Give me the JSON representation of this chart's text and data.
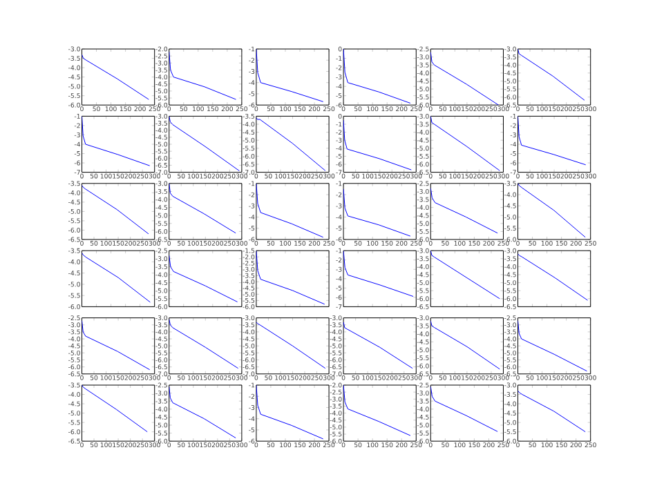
{
  "chart_data": [
    {
      "type": "line",
      "color": "#0000ff",
      "x": [
        0,
        5,
        15,
        122,
        230
      ],
      "values": [
        -3.3,
        -3.5,
        -3.6,
        -4.6,
        -5.7
      ],
      "xlim": [
        0,
        250
      ],
      "ylim": [
        -6,
        -3
      ],
      "xticks": [
        0,
        50,
        100,
        150,
        200,
        250
      ],
      "yticks": [
        {
          "value": -6,
          "label": "-6.0"
        },
        -5.5,
        {
          "value": -5,
          "label": "-5.0"
        },
        -4.5,
        {
          "value": -4,
          "label": "-4.0"
        },
        -3.5,
        {
          "value": -3,
          "label": "-3.0"
        }
      ]
    },
    {
      "type": "line",
      "color": "#0000ff",
      "x": [
        0,
        5,
        15,
        122,
        230
      ],
      "values": [
        -2.2,
        -3.5,
        -4.0,
        -4.7,
        -5.6
      ],
      "xlim": [
        0,
        250
      ],
      "ylim": [
        -6,
        -2
      ],
      "xticks": [
        0,
        50,
        100,
        150,
        200,
        250
      ],
      "yticks": [
        {
          "value": -6,
          "label": "-6.0"
        },
        -5.5,
        {
          "value": -5,
          "label": "-5.0"
        },
        -4.5,
        {
          "value": -4,
          "label": "-4.0"
        },
        -3.5,
        {
          "value": -3,
          "label": "-3.0"
        },
        -2.5,
        {
          "value": -2,
          "label": "-2.0"
        }
      ]
    },
    {
      "type": "line",
      "color": "#0000ff",
      "x": [
        0,
        5,
        15,
        122,
        230
      ],
      "values": [
        -1,
        -3.1,
        -4.0,
        -4.8,
        -5.7
      ],
      "xlim": [
        0,
        250
      ],
      "ylim": [
        -6,
        -1
      ],
      "xticks": [
        0,
        50,
        100,
        150,
        200,
        250
      ],
      "yticks": [
        -6,
        -5,
        -4,
        -3,
        -2,
        -1
      ]
    },
    {
      "type": "line",
      "color": "#0000ff",
      "x": [
        0,
        5,
        15,
        122,
        230
      ],
      "values": [
        0,
        -2.5,
        -3.6,
        -4.6,
        -5.8
      ],
      "xlim": [
        0,
        250
      ],
      "ylim": [
        -6,
        0
      ],
      "xticks": [
        0,
        50,
        100,
        150,
        200,
        250
      ],
      "yticks": [
        -6,
        -5,
        -4,
        -3,
        -2,
        -1,
        0
      ]
    },
    {
      "type": "line",
      "color": "#0000ff",
      "x": [
        0,
        5,
        15,
        148,
        280
      ],
      "values": [
        -2.7,
        -3.3,
        -3.5,
        -4.7,
        -6.0
      ],
      "xlim": [
        0,
        300
      ],
      "ylim": [
        -6,
        -2.5
      ],
      "xticks": [
        0,
        50,
        100,
        150,
        200,
        250,
        300
      ],
      "yticks": [
        {
          "value": -6,
          "label": "-6.0"
        },
        -5.5,
        {
          "value": -5,
          "label": "-5.0"
        },
        -4.5,
        {
          "value": -4,
          "label": "-4.0"
        },
        -3.5,
        {
          "value": -3,
          "label": "-3.0"
        },
        -2.5
      ]
    },
    {
      "type": "line",
      "color": "#0000ff",
      "x": [
        0,
        5,
        15,
        145,
        275
      ],
      "values": [
        -3.0,
        -3.3,
        -3.4,
        -4.7,
        -6.2
      ],
      "xlim": [
        0,
        300
      ],
      "ylim": [
        -6.5,
        -3
      ],
      "xticks": [
        0,
        50,
        100,
        150,
        200,
        250,
        300
      ],
      "yticks": [
        -6.5,
        {
          "value": -6,
          "label": "-6.0"
        },
        -5.5,
        {
          "value": -5,
          "label": "-5.0"
        },
        -4.5,
        {
          "value": -4,
          "label": "-4.0"
        },
        -3.5,
        {
          "value": -3,
          "label": "-3.0"
        }
      ]
    },
    {
      "type": "line",
      "color": "#0000ff",
      "x": [
        0,
        5,
        15,
        148,
        280
      ],
      "values": [
        -1,
        -3.1,
        -4.0,
        -5.1,
        -6.3
      ],
      "xlim": [
        0,
        300
      ],
      "ylim": [
        -7,
        -1
      ],
      "xticks": [
        0,
        50,
        100,
        150,
        200,
        250,
        300
      ],
      "yticks": [
        -7,
        -6,
        -5,
        -4,
        -3,
        -2,
        -1
      ]
    },
    {
      "type": "line",
      "color": "#0000ff",
      "x": [
        0,
        5,
        15,
        152,
        290
      ],
      "values": [
        -3.0,
        -3.4,
        -3.6,
        -5.2,
        -6.9
      ],
      "xlim": [
        0,
        300
      ],
      "ylim": [
        -7,
        -3
      ],
      "xticks": [
        0,
        50,
        100,
        150,
        200,
        250,
        300
      ],
      "yticks": [
        {
          "value": -7,
          "label": "-7.0"
        },
        -6.5,
        {
          "value": -6,
          "label": "-6.0"
        },
        -5.5,
        {
          "value": -5,
          "label": "-5.0"
        },
        -4.5,
        {
          "value": -4,
          "label": "-4.0"
        },
        -3.5,
        {
          "value": -3,
          "label": "-3.0"
        }
      ]
    },
    {
      "type": "line",
      "color": "#0000ff",
      "x": [
        0,
        5,
        15,
        150,
        285
      ],
      "values": [
        -3.6,
        -3.7,
        -3.7,
        -5.2,
        -6.9
      ],
      "xlim": [
        0,
        300
      ],
      "ylim": [
        -7,
        -3.5
      ],
      "xticks": [
        0,
        50,
        100,
        150,
        200,
        250,
        300
      ],
      "yticks": [
        {
          "value": -7,
          "label": "-7.0"
        },
        -6.5,
        {
          "value": -6,
          "label": "-6.0"
        },
        -5.5,
        {
          "value": -5,
          "label": "-5.0"
        },
        -4.5,
        {
          "value": -4,
          "label": "-4.0"
        },
        -3.5
      ]
    },
    {
      "type": "line",
      "color": "#0000ff",
      "x": [
        0,
        5,
        15,
        148,
        280
      ],
      "values": [
        -0.5,
        -3.0,
        -4.1,
        -5.3,
        -6.7
      ],
      "xlim": [
        0,
        300
      ],
      "ylim": [
        -7,
        0
      ],
      "xticks": [
        0,
        50,
        100,
        150,
        200,
        250,
        300
      ],
      "yticks": [
        -7,
        -6,
        -5,
        -4,
        -3,
        -2,
        -1,
        0
      ]
    },
    {
      "type": "line",
      "color": "#0000ff",
      "x": [
        0,
        5,
        15,
        150,
        285
      ],
      "values": [
        -3.0,
        -3.4,
        -3.5,
        -4.9,
        -6.4
      ],
      "xlim": [
        0,
        300
      ],
      "ylim": [
        -6.5,
        -3
      ],
      "xticks": [
        0,
        50,
        100,
        150,
        200,
        250,
        300
      ],
      "yticks": [
        -6.5,
        {
          "value": -6,
          "label": "-6.0"
        },
        -5.5,
        {
          "value": -5,
          "label": "-5.0"
        },
        -4.5,
        {
          "value": -4,
          "label": "-4.0"
        },
        -3.5,
        {
          "value": -3,
          "label": "-3.0"
        }
      ]
    },
    {
      "type": "line",
      "color": "#0000ff",
      "x": [
        0,
        5,
        15,
        148,
        280
      ],
      "values": [
        -1,
        -3.2,
        -4.1,
        -5.1,
        -6.2
      ],
      "xlim": [
        0,
        300
      ],
      "ylim": [
        -7,
        -1
      ],
      "xticks": [
        0,
        50,
        100,
        150,
        200,
        250,
        300
      ],
      "yticks": [
        -7,
        -6,
        -5,
        -4,
        -3,
        -2,
        -1
      ]
    },
    {
      "type": "line",
      "color": "#0000ff",
      "x": [
        0,
        5,
        15,
        145,
        275
      ],
      "values": [
        -3.6,
        -3.7,
        -3.8,
        -4.9,
        -6.2
      ],
      "xlim": [
        0,
        300
      ],
      "ylim": [
        -6.5,
        -3.5
      ],
      "xticks": [
        0,
        50,
        100,
        150,
        200,
        250,
        300
      ],
      "yticks": [
        -6.5,
        {
          "value": -6,
          "label": "-6.0"
        },
        -5.5,
        {
          "value": -5,
          "label": "-5.0"
        },
        -4.5,
        {
          "value": -4,
          "label": "-4.0"
        },
        -3.5
      ]
    },
    {
      "type": "line",
      "color": "#0000ff",
      "x": [
        0,
        5,
        15,
        145,
        275
      ],
      "values": [
        -3.0,
        -3.6,
        -3.8,
        -4.9,
        -6.1
      ],
      "xlim": [
        0,
        300
      ],
      "ylim": [
        -6.5,
        -3
      ],
      "xticks": [
        0,
        50,
        100,
        150,
        200,
        250,
        300
      ],
      "yticks": [
        -6.5,
        {
          "value": -6,
          "label": "-6.0"
        },
        -5.5,
        {
          "value": -5,
          "label": "-5.0"
        },
        -4.5,
        {
          "value": -4,
          "label": "-4.0"
        },
        -3.5,
        {
          "value": -3,
          "label": "-3.0"
        }
      ]
    },
    {
      "type": "line",
      "color": "#0000ff",
      "x": [
        0,
        5,
        15,
        122,
        230
      ],
      "values": [
        -1,
        -2.8,
        -3.6,
        -4.6,
        -5.8
      ],
      "xlim": [
        0,
        250
      ],
      "ylim": [
        -6,
        -1
      ],
      "xticks": [
        0,
        50,
        100,
        150,
        200,
        250
      ],
      "yticks": [
        -6,
        -5,
        -4,
        -3,
        -2,
        -1
      ]
    },
    {
      "type": "line",
      "color": "#0000ff",
      "x": [
        0,
        5,
        15,
        122,
        230
      ],
      "values": [
        -1.5,
        -3.2,
        -3.9,
        -4.7,
        -5.7
      ],
      "xlim": [
        0,
        250
      ],
      "ylim": [
        -6,
        -1
      ],
      "xticks": [
        0,
        50,
        100,
        150,
        200,
        250
      ],
      "yticks": [
        -6,
        -5,
        -4,
        -3,
        -2,
        -1
      ]
    },
    {
      "type": "line",
      "color": "#0000ff",
      "x": [
        0,
        5,
        15,
        122,
        230
      ],
      "values": [
        -2.8,
        -3.4,
        -3.7,
        -4.6,
        -5.6
      ],
      "xlim": [
        0,
        250
      ],
      "ylim": [
        -6,
        -2.5
      ],
      "xticks": [
        0,
        50,
        100,
        150,
        200,
        250
      ],
      "yticks": [
        {
          "value": -6,
          "label": "-6.0"
        },
        -5.5,
        {
          "value": -5,
          "label": "-5.0"
        },
        -4.5,
        {
          "value": -4,
          "label": "-4.0"
        },
        -3.5,
        {
          "value": -3,
          "label": "-3.0"
        },
        -2.5
      ]
    },
    {
      "type": "line",
      "color": "#0000ff",
      "x": [
        0,
        5,
        15,
        124,
        232
      ],
      "values": [
        -3.5,
        -3.6,
        -3.7,
        -4.7,
        -5.9
      ],
      "xlim": [
        0,
        250
      ],
      "ylim": [
        -6,
        -3.5
      ],
      "xticks": [
        0,
        50,
        100,
        150,
        200,
        250
      ],
      "yticks": [
        {
          "value": -6,
          "label": "-6.0"
        },
        -5.5,
        {
          "value": -5,
          "label": "-5.0"
        },
        -4.5,
        {
          "value": -4,
          "label": "-4.0"
        },
        -3.5
      ]
    },
    {
      "type": "line",
      "color": "#0000ff",
      "x": [
        0,
        5,
        15,
        125,
        235
      ],
      "values": [
        -3.6,
        -3.7,
        -3.8,
        -4.7,
        -5.8
      ],
      "xlim": [
        0,
        250
      ],
      "ylim": [
        -6,
        -3.5
      ],
      "xticks": [
        0,
        50,
        100,
        150,
        200,
        250
      ],
      "yticks": [
        {
          "value": -6,
          "label": "-6.0"
        },
        -5.5,
        {
          "value": -5,
          "label": "-5.0"
        },
        -4.5,
        {
          "value": -4,
          "label": "-4.0"
        },
        -3.5
      ],
      "tick_labels": "y"
    },
    {
      "type": "line",
      "color": "#0000ff",
      "x": [
        0,
        5,
        15,
        125,
        235
      ],
      "values": [
        -2.8,
        -3.5,
        -3.8,
        -4.7,
        -5.7
      ],
      "xlim": [
        0,
        250
      ],
      "ylim": [
        -6,
        -2.5
      ],
      "xticks": [
        0,
        50,
        100,
        150,
        200,
        250
      ],
      "yticks": [
        {
          "value": -6,
          "label": "-6.0"
        },
        -5.5,
        {
          "value": -5,
          "label": "-5.0"
        },
        -4.5,
        {
          "value": -4,
          "label": "-4.0"
        },
        -3.5,
        {
          "value": -3,
          "label": "-3.0"
        },
        -2.5
      ],
      "tick_labels": "y"
    },
    {
      "type": "line",
      "color": "#0000ff",
      "x": [
        0,
        5,
        15,
        125,
        235
      ],
      "values": [
        -1.5,
        -3.1,
        -3.8,
        -4.7,
        -5.8
      ],
      "xlim": [
        0,
        250
      ],
      "ylim": [
        -6,
        -1.5
      ],
      "xticks": [
        0,
        50,
        100,
        150,
        200,
        250
      ],
      "yticks": [
        {
          "value": -6,
          "label": "-6.0"
        },
        -5.5,
        {
          "value": -5,
          "label": "-5.0"
        },
        -4.5,
        {
          "value": -4,
          "label": "-4.0"
        },
        -3.5,
        {
          "value": -3,
          "label": "-3.0"
        },
        -2.5,
        {
          "value": -2,
          "label": "-2.0"
        },
        -1.5
      ],
      "tick_labels": "y"
    },
    {
      "type": "line",
      "color": "#0000ff",
      "x": [
        0,
        5,
        15,
        128,
        240
      ],
      "values": [
        -1,
        -2.8,
        -3.6,
        -4.7,
        -5.9
      ],
      "xlim": [
        0,
        250
      ],
      "ylim": [
        -7,
        -1
      ],
      "xticks": [
        0,
        50,
        100,
        150,
        200,
        250
      ],
      "yticks": [
        -7,
        -6,
        -5,
        -4,
        -3,
        -2,
        -1
      ],
      "tick_labels": "y"
    },
    {
      "type": "line",
      "color": "#0000ff",
      "x": [
        0,
        5,
        15,
        150,
        285
      ],
      "values": [
        -3.0,
        -3.3,
        -3.4,
        -4.7,
        -6.0
      ],
      "xlim": [
        0,
        300
      ],
      "ylim": [
        -6.5,
        -3
      ],
      "xticks": [
        0,
        50,
        100,
        150,
        200,
        250,
        300
      ],
      "yticks": [
        -6.5,
        {
          "value": -6,
          "label": "-6.0"
        },
        -5.5,
        {
          "value": -5,
          "label": "-5.0"
        },
        -4.5,
        {
          "value": -4,
          "label": "-4.0"
        },
        -3.5,
        {
          "value": -3,
          "label": "-3.0"
        }
      ],
      "tick_labels": "y"
    },
    {
      "type": "line",
      "color": "#0000ff",
      "x": [
        0,
        5,
        15,
        128,
        240
      ],
      "values": [
        -3.2,
        -3.3,
        -3.4,
        -4.7,
        -6.1
      ],
      "xlim": [
        0,
        250
      ],
      "ylim": [
        -6.5,
        -3
      ],
      "xticks": [
        0,
        50,
        100,
        150,
        200,
        250
      ],
      "yticks": [
        -6.5,
        {
          "value": -6,
          "label": "-6.0"
        },
        -5.5,
        {
          "value": -5,
          "label": "-5.0"
        },
        -4.5,
        {
          "value": -4,
          "label": "-4.0"
        },
        -3.5,
        {
          "value": -3,
          "label": "-3.0"
        }
      ],
      "tick_labels": "y"
    },
    {
      "type": "line",
      "color": "#0000ff",
      "x": [
        0,
        5,
        15,
        148,
        280
      ],
      "values": [
        -2.7,
        -3.5,
        -3.8,
        -4.9,
        -6.2
      ],
      "xlim": [
        0,
        300
      ],
      "ylim": [
        -6.5,
        -2.5
      ],
      "xticks": [
        0,
        50,
        100,
        150,
        200,
        250,
        300
      ],
      "yticks": [
        -6.5,
        {
          "value": -6,
          "label": "-6.0"
        },
        -5.5,
        {
          "value": -5,
          "label": "-5.0"
        },
        -4.5,
        {
          "value": -4,
          "label": "-4.0"
        },
        -3.5,
        {
          "value": -3,
          "label": "-3.0"
        },
        -2.5
      ]
    },
    {
      "type": "line",
      "color": "#0000ff",
      "x": [
        0,
        5,
        15,
        150,
        285
      ],
      "values": [
        -3.1,
        -3.5,
        -3.7,
        -5.1,
        -6.6
      ],
      "xlim": [
        0,
        300
      ],
      "ylim": [
        -7,
        -3
      ],
      "xticks": [
        0,
        50,
        100,
        150,
        200,
        250,
        300
      ],
      "yticks": [
        {
          "value": -7,
          "label": "-7.0"
        },
        -6.5,
        {
          "value": -6,
          "label": "-6.0"
        },
        -5.5,
        {
          "value": -5,
          "label": "-5.0"
        },
        -4.5,
        {
          "value": -4,
          "label": "-4.0"
        },
        -3.5,
        {
          "value": -3,
          "label": "-3.0"
        }
      ]
    },
    {
      "type": "line",
      "color": "#0000ff",
      "x": [
        0,
        5,
        15,
        150,
        285
      ],
      "values": [
        -3.3,
        -3.4,
        -3.5,
        -5.0,
        -6.6
      ],
      "xlim": [
        0,
        300
      ],
      "ylim": [
        -7,
        -3
      ],
      "xticks": [
        0,
        50,
        100,
        150,
        200,
        250,
        300
      ],
      "yticks": [
        {
          "value": -7,
          "label": "-7.0"
        },
        -6.5,
        {
          "value": -6,
          "label": "-6.0"
        },
        -5.5,
        {
          "value": -5,
          "label": "-5.0"
        },
        -4.5,
        {
          "value": -4,
          "label": "-4.0"
        },
        -3.5,
        {
          "value": -3,
          "label": "-3.0"
        }
      ]
    },
    {
      "type": "line",
      "color": "#0000ff",
      "x": [
        0,
        5,
        15,
        150,
        285
      ],
      "values": [
        -3.3,
        -3.7,
        -3.8,
        -5.1,
        -6.6
      ],
      "xlim": [
        0,
        300
      ],
      "ylim": [
        -7,
        -3
      ],
      "xticks": [
        0,
        50,
        100,
        150,
        200,
        250,
        300
      ],
      "yticks": [
        {
          "value": -7,
          "label": "-7.0"
        },
        -6.5,
        {
          "value": -6,
          "label": "-6.0"
        },
        -5.5,
        {
          "value": -5,
          "label": "-5.0"
        },
        -4.5,
        {
          "value": -4,
          "label": "-4.0"
        },
        -3.5,
        {
          "value": -3,
          "label": "-3.0"
        }
      ]
    },
    {
      "type": "line",
      "color": "#0000ff",
      "x": [
        0,
        5,
        15,
        150,
        285
      ],
      "values": [
        -3.2,
        -3.5,
        -3.6,
        -4.8,
        -6.2
      ],
      "xlim": [
        0,
        300
      ],
      "ylim": [
        -6.5,
        -3
      ],
      "xticks": [
        0,
        50,
        100,
        150,
        200,
        250,
        300
      ],
      "yticks": [
        -6.5,
        {
          "value": -6,
          "label": "-6.0"
        },
        -5.5,
        {
          "value": -5,
          "label": "-5.0"
        },
        -4.5,
        {
          "value": -4,
          "label": "-4.0"
        },
        -3.5,
        {
          "value": -3,
          "label": "-3.0"
        }
      ]
    },
    {
      "type": "line",
      "color": "#0000ff",
      "x": [
        0,
        5,
        15,
        150,
        285
      ],
      "values": [
        -2.7,
        -3.6,
        -4.0,
        -5.1,
        -6.3
      ],
      "xlim": [
        0,
        300
      ],
      "ylim": [
        -6.5,
        -2.5
      ],
      "xticks": [
        0,
        50,
        100,
        150,
        200,
        250,
        300
      ],
      "yticks": [
        -6.5,
        {
          "value": -6,
          "label": "-6.0"
        },
        -5.5,
        {
          "value": -5,
          "label": "-5.0"
        },
        -4.5,
        {
          "value": -4,
          "label": "-4.0"
        },
        -3.5,
        {
          "value": -3,
          "label": "-3.0"
        },
        -2.5
      ]
    },
    {
      "type": "line",
      "color": "#0000ff",
      "x": [
        0,
        5,
        15,
        142,
        270
      ],
      "values": [
        -3.5,
        -3.6,
        -3.7,
        -4.8,
        -6.0
      ],
      "xlim": [
        0,
        300
      ],
      "ylim": [
        -6.5,
        -3.5
      ],
      "xticks": [
        0,
        50,
        100,
        150,
        200,
        250,
        300
      ],
      "yticks": [
        -6.5,
        {
          "value": -6,
          "label": "-6.0"
        },
        -5.5,
        {
          "value": -5,
          "label": "-5.0"
        },
        -4.5,
        {
          "value": -4,
          "label": "-4.0"
        },
        -3.5
      ]
    },
    {
      "type": "line",
      "color": "#0000ff",
      "x": [
        0,
        5,
        15,
        145,
        275
      ],
      "values": [
        -2.6,
        -3.3,
        -3.6,
        -4.6,
        -5.8
      ],
      "xlim": [
        0,
        300
      ],
      "ylim": [
        -6,
        -2.5
      ],
      "xticks": [
        0,
        50,
        100,
        150,
        200,
        250,
        300
      ],
      "yticks": [
        {
          "value": -6,
          "label": "-6.0"
        },
        -5.5,
        {
          "value": -5,
          "label": "-5.0"
        },
        -4.5,
        {
          "value": -4,
          "label": "-4.0"
        },
        -3.5,
        {
          "value": -3,
          "label": "-3.0"
        },
        -2.5
      ]
    },
    {
      "type": "line",
      "color": "#0000ff",
      "x": [
        0,
        5,
        15,
        122,
        230
      ],
      "values": [
        -1,
        -2.8,
        -3.6,
        -4.6,
        -5.8
      ],
      "xlim": [
        0,
        250
      ],
      "ylim": [
        -6,
        -1
      ],
      "xticks": [
        0,
        50,
        100,
        150,
        200,
        250
      ],
      "yticks": [
        -6,
        -5,
        -4,
        -3,
        -2,
        -1
      ]
    },
    {
      "type": "line",
      "color": "#0000ff",
      "x": [
        0,
        5,
        15,
        122,
        230
      ],
      "values": [
        -2.0,
        -3.2,
        -3.7,
        -4.6,
        -5.6
      ],
      "xlim": [
        0,
        250
      ],
      "ylim": [
        -6,
        -2
      ],
      "xticks": [
        0,
        50,
        100,
        150,
        200,
        250
      ],
      "yticks": [
        {
          "value": -6,
          "label": "-6.0"
        },
        -5.5,
        {
          "value": -5,
          "label": "-5.0"
        },
        -4.5,
        {
          "value": -4,
          "label": "-4.0"
        },
        -3.5,
        {
          "value": -3,
          "label": "-3.0"
        },
        -2.5,
        {
          "value": -2,
          "label": "-2.0"
        }
      ]
    },
    {
      "type": "line",
      "color": "#0000ff",
      "x": [
        0,
        5,
        15,
        122,
        230
      ],
      "values": [
        -2.6,
        -3.2,
        -3.5,
        -4.4,
        -5.4
      ],
      "xlim": [
        0,
        250
      ],
      "ylim": [
        -6,
        -2.5
      ],
      "xticks": [
        0,
        50,
        100,
        150,
        200,
        250
      ],
      "yticks": [
        {
          "value": -6,
          "label": "-6.0"
        },
        -5.5,
        {
          "value": -5,
          "label": "-5.0"
        },
        -4.5,
        {
          "value": -4,
          "label": "-4.0"
        },
        -3.5,
        {
          "value": -3,
          "label": "-3.0"
        },
        -2.5
      ]
    },
    {
      "type": "line",
      "color": "#0000ff",
      "x": [
        0,
        5,
        15,
        124,
        232
      ],
      "values": [
        -3.3,
        -3.4,
        -3.5,
        -4.4,
        -5.5
      ],
      "xlim": [
        0,
        250
      ],
      "ylim": [
        -6,
        -3
      ],
      "xticks": [
        0,
        50,
        100,
        150,
        200,
        250
      ],
      "yticks": [
        {
          "value": -6,
          "label": "-6.0"
        },
        -5.5,
        {
          "value": -5,
          "label": "-5.0"
        },
        -4.5,
        {
          "value": -4,
          "label": "-4.0"
        },
        -3.5,
        {
          "value": -3,
          "label": "-3.0"
        }
      ]
    }
  ]
}
